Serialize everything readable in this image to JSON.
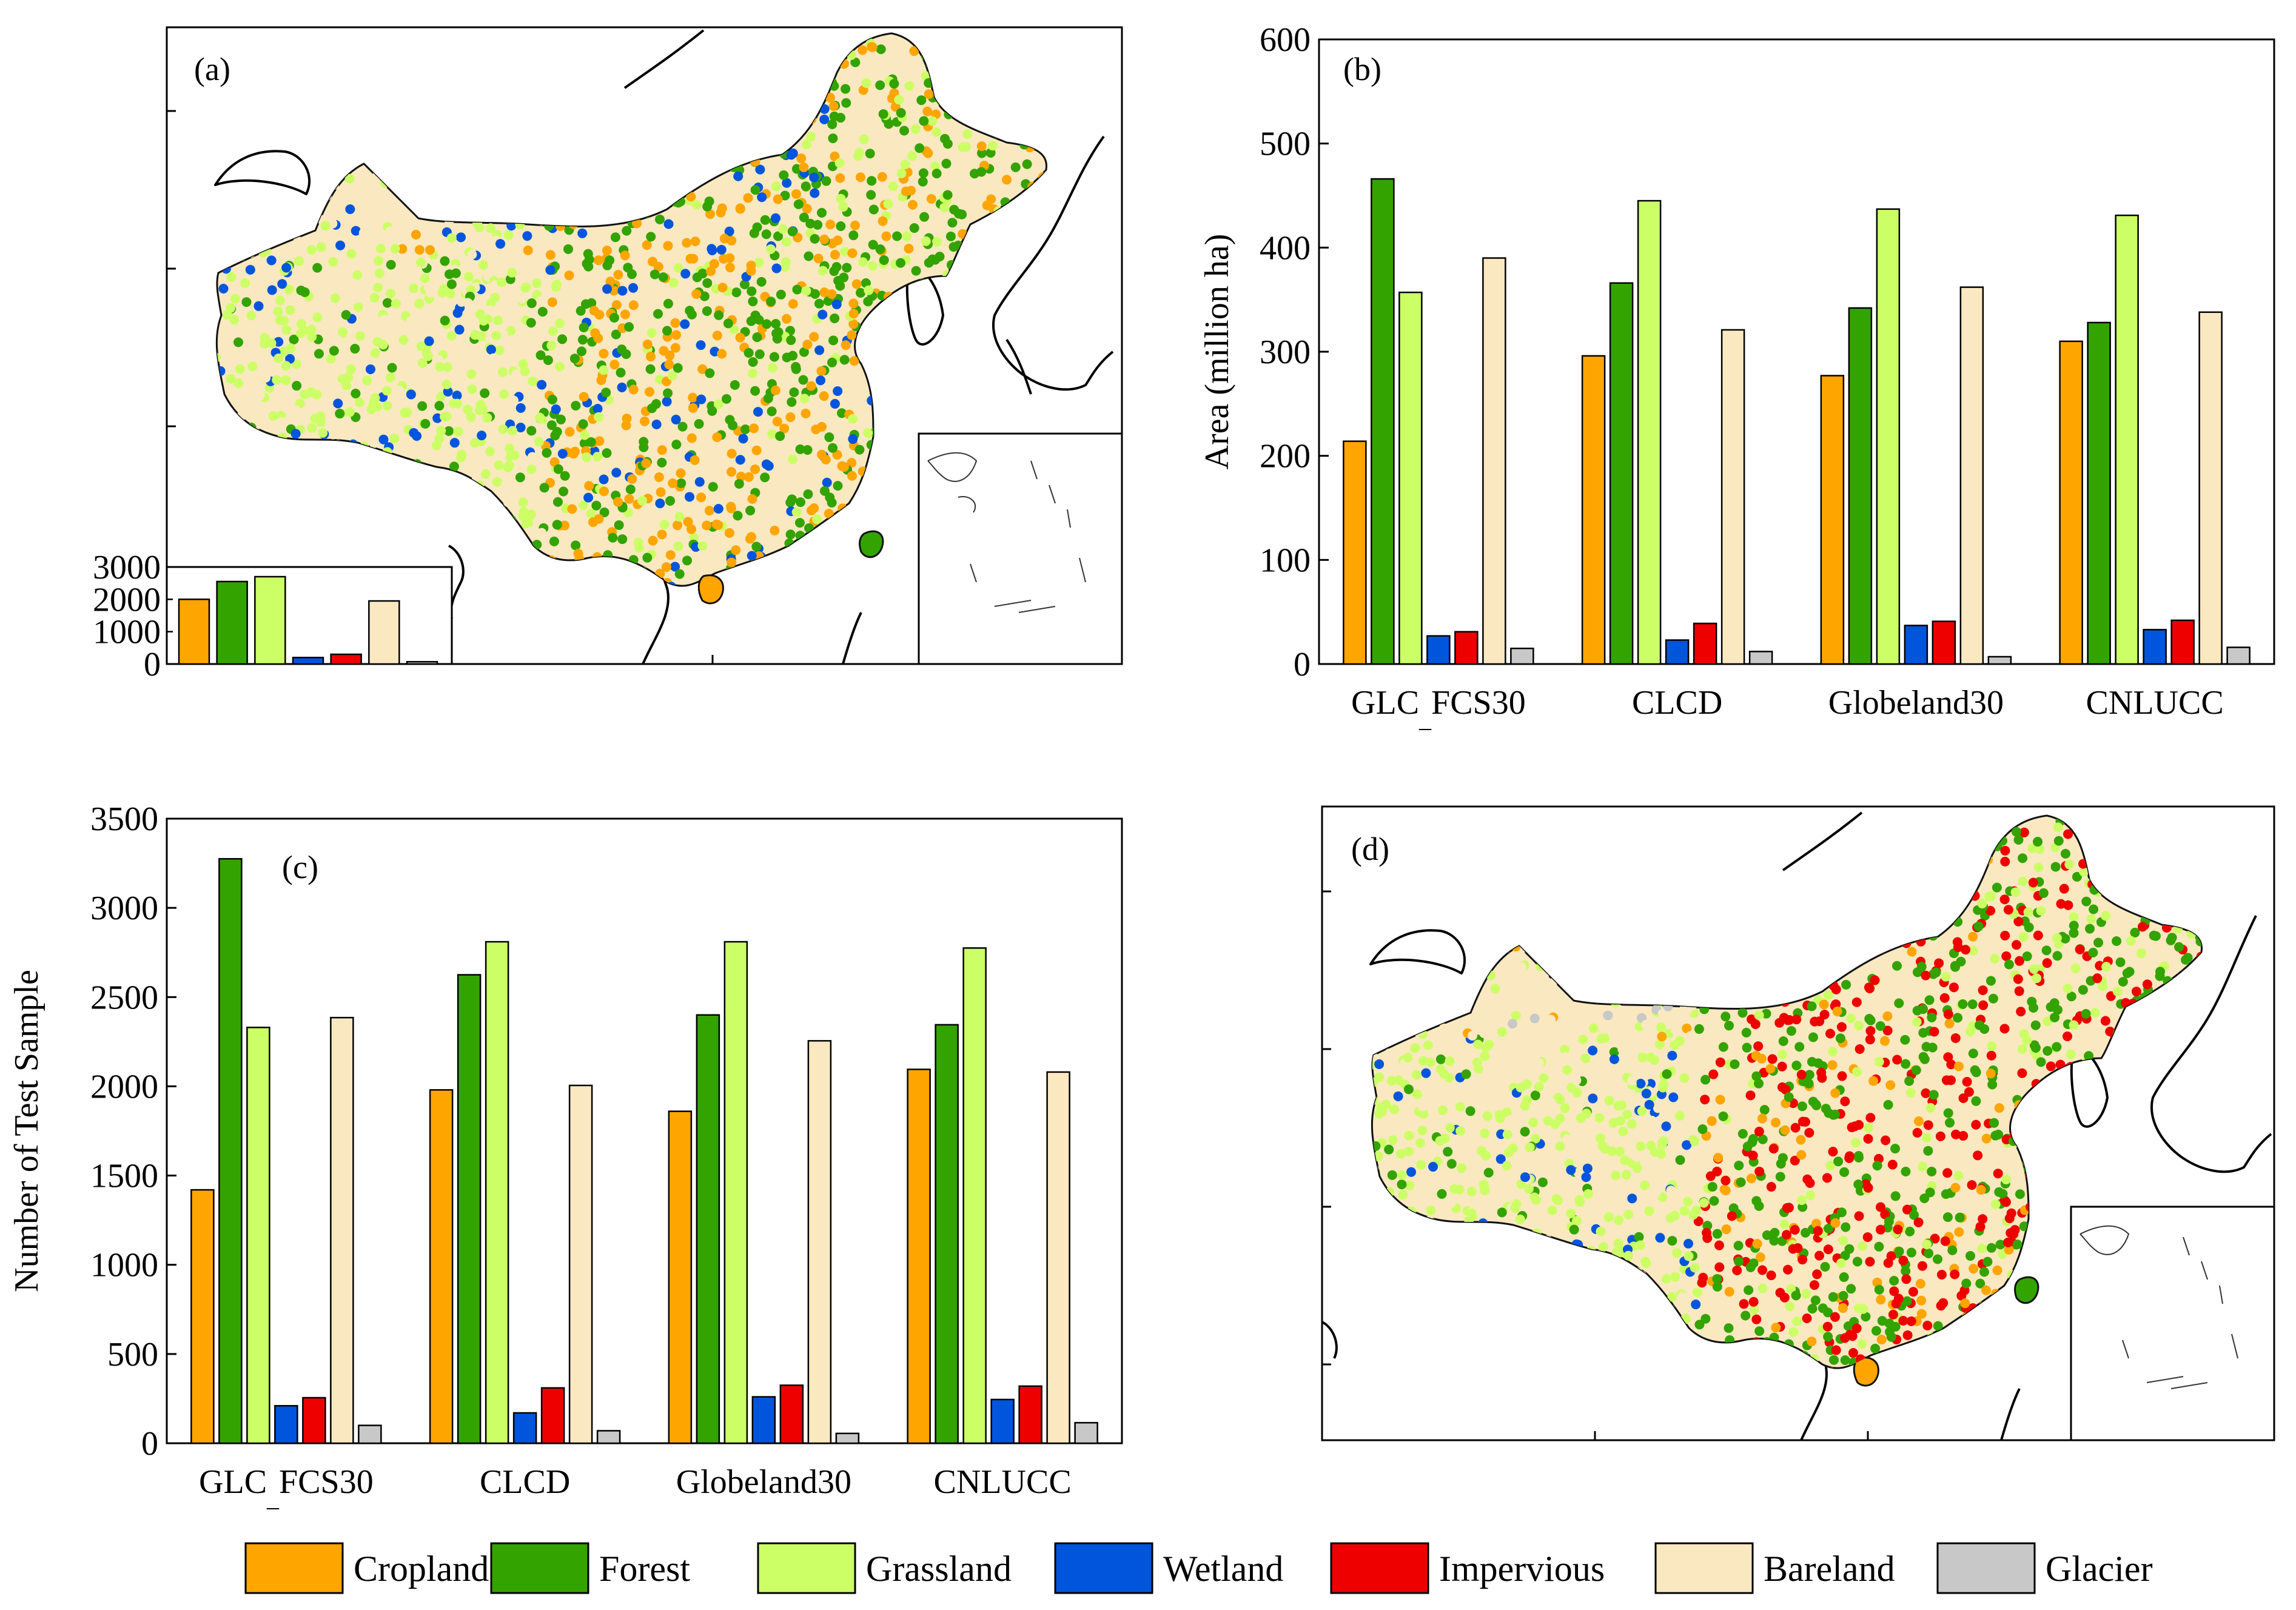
{
  "colors": {
    "Cropland": "#FFA500",
    "Forest": "#33A300",
    "Grassland": "#CCFF66",
    "Wetland": "#0055DD",
    "Impervious": "#EE0000",
    "Bareland": "#FAE8C0",
    "Glacier": "#C8C8C8"
  },
  "legend": [
    "Cropland",
    "Forest",
    "Grassland",
    "Wetland",
    "Impervious",
    "Bareland",
    "Glacier"
  ],
  "panels": {
    "a": {
      "label": "(a)"
    },
    "b": {
      "label": "(b)"
    },
    "c": {
      "label": "(c)"
    },
    "d": {
      "label": "(d)"
    }
  },
  "chart_data": [
    {
      "id": "a-inset",
      "type": "bar",
      "title": "(a)",
      "categories": [
        "Cropland",
        "Forest",
        "Grassland",
        "Wetland",
        "Impervious",
        "Bareland",
        "Glacier"
      ],
      "values": [
        2000,
        2550,
        2700,
        200,
        300,
        1950,
        70
      ],
      "yticks": [
        0,
        1000,
        2000,
        3000
      ],
      "yticklabels": [
        "0",
        "1000",
        "2000",
        "3000"
      ],
      "ylim": [
        0,
        3000
      ]
    },
    {
      "id": "b",
      "type": "bar",
      "title": "(b)",
      "ylabel": "Area (million ha)",
      "xlabel": "",
      "groups": [
        "GLC_FCS30",
        "CLCD",
        "Globeland30",
        "CNLUCC"
      ],
      "series": [
        {
          "name": "Cropland",
          "values": [
            214,
            296,
            277,
            310
          ]
        },
        {
          "name": "Forest",
          "values": [
            466,
            366,
            342,
            328
          ]
        },
        {
          "name": "Grassland",
          "values": [
            357,
            445,
            437,
            431
          ]
        },
        {
          "name": "Wetland",
          "values": [
            27,
            23,
            37,
            33
          ]
        },
        {
          "name": "Impervious",
          "values": [
            31,
            39,
            41,
            42
          ]
        },
        {
          "name": "Bareland",
          "values": [
            390,
            321,
            362,
            338
          ]
        },
        {
          "name": "Glacier",
          "values": [
            15,
            12,
            7,
            16
          ]
        }
      ],
      "yticks": [
        0,
        100,
        200,
        300,
        400,
        500,
        600
      ],
      "yticklabels": [
        "0",
        "100",
        "200",
        "300",
        "400",
        "500",
        "600"
      ],
      "ylim": [
        0,
        600
      ]
    },
    {
      "id": "c",
      "type": "bar",
      "title": "(c)",
      "ylabel": "Number of Test Sample",
      "xlabel": "",
      "groups": [
        "GLC_FCS30",
        "CLCD",
        "Globeland30",
        "CNLUCC"
      ],
      "series": [
        {
          "name": "Cropland",
          "values": [
            1420,
            1980,
            1860,
            2095
          ]
        },
        {
          "name": "Forest",
          "values": [
            3275,
            2625,
            2400,
            2345
          ]
        },
        {
          "name": "Grassland",
          "values": [
            2330,
            2810,
            2810,
            2775
          ]
        },
        {
          "name": "Wetland",
          "values": [
            210,
            170,
            260,
            245
          ]
        },
        {
          "name": "Impervious",
          "values": [
            255,
            310,
            325,
            320
          ]
        },
        {
          "name": "Bareland",
          "values": [
            2385,
            2005,
            2255,
            2080
          ]
        },
        {
          "name": "Glacier",
          "values": [
            100,
            70,
            55,
            115
          ]
        }
      ],
      "yticks": [
        0,
        500,
        1000,
        1500,
        2000,
        2500,
        3000,
        3500
      ],
      "yticklabels": [
        "0",
        "500",
        "1000",
        "1500",
        "2000",
        "2500",
        "3000",
        "3500"
      ],
      "ylim": [
        0,
        3500
      ]
    }
  ]
}
